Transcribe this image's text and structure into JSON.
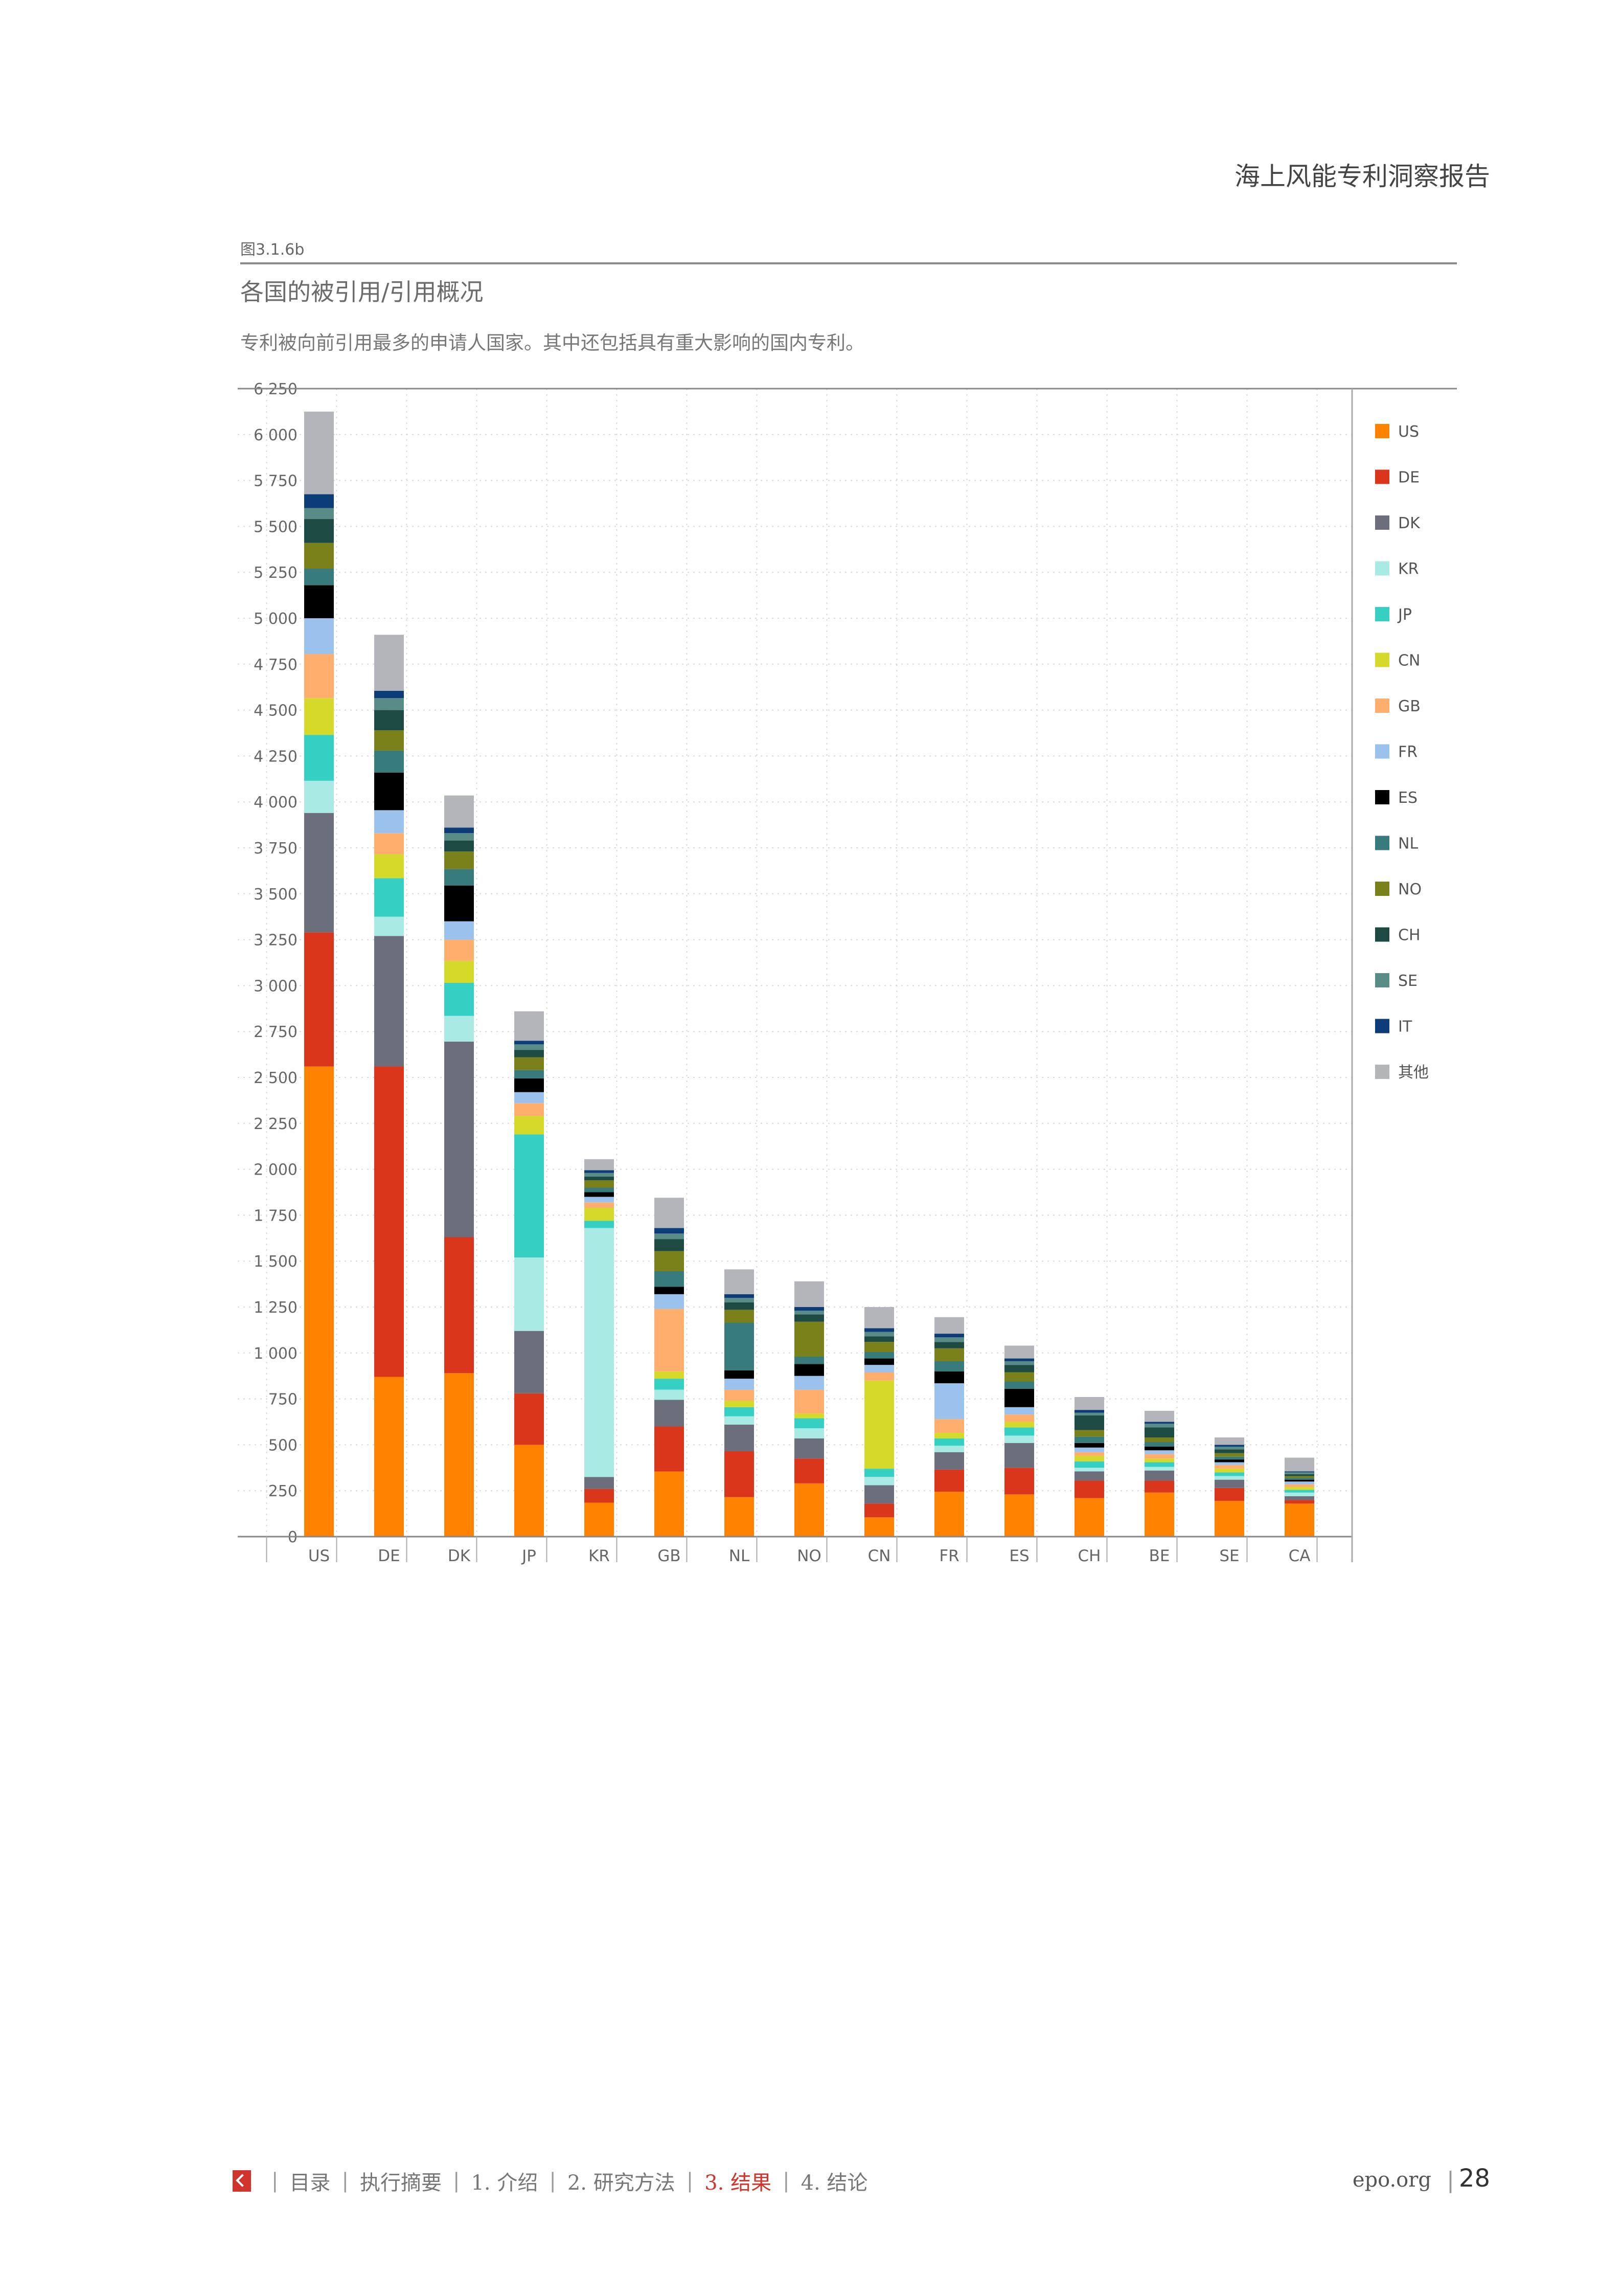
{
  "header": {
    "doc_title": "海上风能专利洞察报告"
  },
  "figure": {
    "label": "图3.1.6b",
    "title": "各国的被引用/引用概况",
    "subtitle": "专利被向前引用最多的申请人国家。其中还包括具有重大影响的国内专利。"
  },
  "chart_data": {
    "type": "bar",
    "stacked": true,
    "title": "",
    "xlabel": "",
    "ylabel": "",
    "ylim": [
      0,
      6250
    ],
    "y_ticks": [
      0,
      250,
      500,
      750,
      1000,
      1250,
      1500,
      1750,
      2000,
      2250,
      2500,
      2750,
      3000,
      3250,
      3500,
      3750,
      4000,
      4250,
      4500,
      4750,
      5000,
      5250,
      5500,
      5750,
      6000,
      6250
    ],
    "y_tick_labels": [
      "0",
      "250",
      "500",
      "750",
      "1 000",
      "1 250",
      "1 500",
      "1 750",
      "2 000",
      "2 250",
      "2 500",
      "2 750",
      "3 000",
      "3 250",
      "3 500",
      "3 750",
      "4 000",
      "4 250",
      "4 500",
      "4 750",
      "5 000",
      "5 250",
      "5 500",
      "5 750",
      "6 000",
      "6 250"
    ],
    "grid": true,
    "legend_position": "right",
    "categories": [
      "US",
      "DE",
      "DK",
      "JP",
      "KR",
      "GB",
      "NL",
      "NO",
      "CN",
      "FR",
      "ES",
      "CH",
      "BE",
      "SE",
      "CA"
    ],
    "series": [
      {
        "name": "US",
        "color": "#ff8200",
        "values": [
          2560,
          870,
          890,
          500,
          185,
          355,
          215,
          290,
          105,
          245,
          230,
          210,
          240,
          195,
          180
        ]
      },
      {
        "name": "DE",
        "color": "#d9361c",
        "values": [
          730,
          1690,
          740,
          280,
          75,
          245,
          250,
          135,
          75,
          120,
          145,
          95,
          65,
          70,
          20
        ]
      },
      {
        "name": "DK",
        "color": "#6c6f7b",
        "values": [
          650,
          710,
          1065,
          340,
          65,
          145,
          145,
          110,
          100,
          95,
          135,
          50,
          55,
          45,
          20
        ]
      },
      {
        "name": "KR",
        "color": "#a9ebe4",
        "values": [
          175,
          105,
          140,
          400,
          1355,
          55,
          45,
          55,
          45,
          35,
          40,
          20,
          20,
          20,
          20
        ]
      },
      {
        "name": "JP",
        "color": "#36cfc4",
        "values": [
          250,
          210,
          180,
          670,
          40,
          60,
          50,
          55,
          45,
          40,
          45,
          35,
          25,
          20,
          15
        ]
      },
      {
        "name": "CN",
        "color": "#d4d92a",
        "values": [
          200,
          130,
          120,
          100,
          70,
          40,
          35,
          25,
          480,
          30,
          30,
          30,
          20,
          20,
          15
        ]
      },
      {
        "name": "GB",
        "color": "#ffae6e",
        "values": [
          240,
          115,
          115,
          70,
          30,
          340,
          60,
          130,
          45,
          75,
          40,
          20,
          25,
          20,
          15
        ]
      },
      {
        "name": "FR",
        "color": "#9ac2ec",
        "values": [
          195,
          125,
          100,
          60,
          30,
          80,
          60,
          75,
          40,
          195,
          40,
          25,
          20,
          15,
          15
        ]
      },
      {
        "name": "ES",
        "color": "#000000",
        "values": [
          180,
          205,
          195,
          75,
          25,
          40,
          45,
          65,
          35,
          65,
          100,
          25,
          20,
          15,
          10
        ]
      },
      {
        "name": "NL",
        "color": "#387b7c",
        "values": [
          90,
          120,
          90,
          45,
          25,
          85,
          260,
          40,
          35,
          55,
          40,
          35,
          25,
          15,
          10
        ]
      },
      {
        "name": "NO",
        "color": "#7a801a",
        "values": [
          140,
          110,
          95,
          70,
          40,
          110,
          70,
          190,
          55,
          70,
          50,
          35,
          25,
          20,
          10
        ]
      },
      {
        "name": "CH",
        "color": "#1e4a44",
        "values": [
          130,
          110,
          60,
          40,
          20,
          65,
          40,
          40,
          30,
          35,
          40,
          80,
          55,
          20,
          10
        ]
      },
      {
        "name": "SE",
        "color": "#5a8c87",
        "values": [
          60,
          65,
          40,
          30,
          20,
          30,
          25,
          20,
          25,
          25,
          20,
          15,
          20,
          15,
          10
        ]
      },
      {
        "name": "IT",
        "color": "#0d3d78",
        "values": [
          75,
          40,
          30,
          20,
          15,
          30,
          20,
          20,
          20,
          20,
          15,
          15,
          10,
          10,
          5
        ]
      },
      {
        "name": "其他",
        "color": "#b3b5ba",
        "values": [
          450,
          305,
          175,
          160,
          60,
          165,
          135,
          140,
          115,
          90,
          70,
          70,
          60,
          40,
          75
        ]
      }
    ]
  },
  "footer": {
    "nav": [
      "目录",
      "执行摘要",
      "1. 介绍",
      "2. 研究方法",
      "3. 结果",
      "4. 结论"
    ],
    "active_index": 4,
    "site": "epo.org",
    "page_number": "28"
  }
}
